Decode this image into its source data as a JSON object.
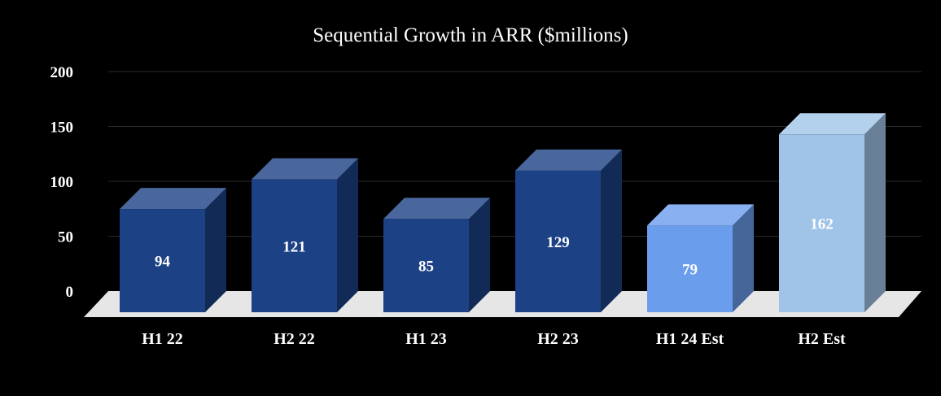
{
  "chart_data": {
    "type": "bar",
    "title": "Sequential Growth in ARR ($millions)",
    "categories": [
      "H1 22",
      "H2 22",
      "H1 23",
      "H2 23",
      "H1 24 Est",
      "H2 Est"
    ],
    "values": [
      94,
      121,
      85,
      129,
      79,
      162
    ],
    "data_labels": [
      "94",
      "121",
      "85",
      "129",
      "79",
      "162"
    ],
    "ylim": [
      0,
      200
    ],
    "yticks": [
      0,
      50,
      100,
      150,
      200
    ],
    "ytick_labels": [
      "0",
      "50",
      "100",
      "150",
      "200"
    ],
    "grid": true,
    "legend": "none",
    "style": "3d-column",
    "colors": {
      "background": "#000000",
      "gridline": "#2a2a2a",
      "floor": "#e6e6e6",
      "bar_dark_blue": "#1c4185",
      "bar_mid_blue": "#6b9ded",
      "bar_light_blue": "#a0c4e8"
    },
    "bar_colors": [
      "#1c4185",
      "#1c4185",
      "#1c4185",
      "#1c4185",
      "#6b9ded",
      "#a0c4e8"
    ]
  }
}
